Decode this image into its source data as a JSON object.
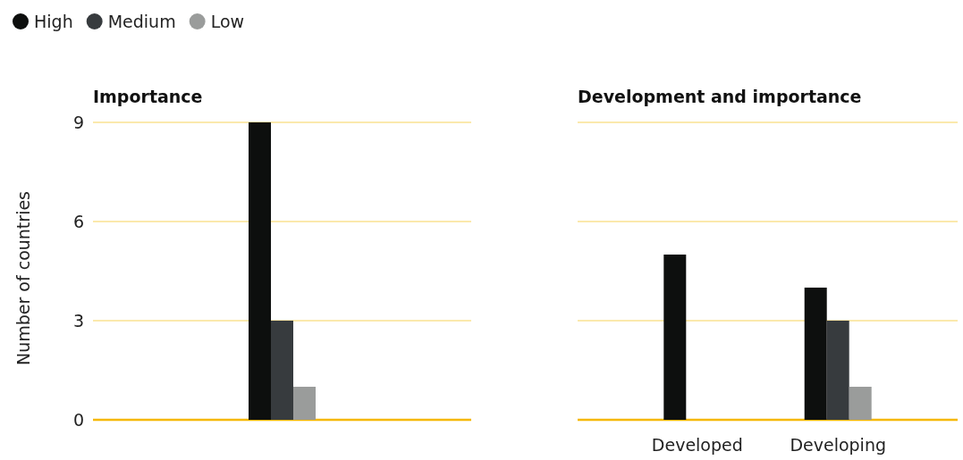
{
  "chart_data": [
    {
      "type": "bar",
      "title": "Importance",
      "ylabel": "Number of countries",
      "categories": [
        null
      ],
      "series": [
        {
          "name": "High",
          "color": "#0d0f0e",
          "values": [
            9
          ]
        },
        {
          "name": "Medium",
          "color": "#373b3e",
          "values": [
            3
          ]
        },
        {
          "name": "Low",
          "color": "#9a9c9b",
          "values": [
            1
          ]
        }
      ],
      "ylim": [
        0,
        9
      ],
      "yticks": [
        0,
        3,
        6,
        9
      ],
      "grid": "y",
      "legend": "top left",
      "tick_labels": "y"
    },
    {
      "type": "bar",
      "title": "Development and importance",
      "categories": [
        "Developed",
        "Developing"
      ],
      "series": [
        {
          "color": "#0d0f0e",
          "values": [
            5,
            4
          ]
        },
        {
          "color": "#373b3e",
          "values": [
            0,
            3
          ]
        },
        {
          "color": "#9a9c9b",
          "values": [
            0,
            1
          ]
        }
      ],
      "ylim": [
        0,
        9
      ],
      "yticks": [
        0,
        3,
        6,
        9
      ],
      "grid": "y",
      "tick_labels": "x"
    }
  ]
}
